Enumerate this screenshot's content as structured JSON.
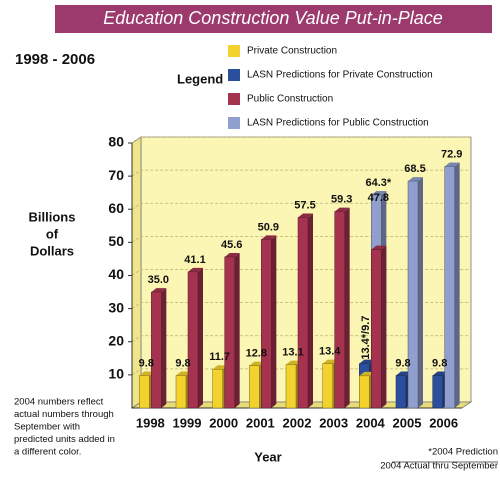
{
  "chart_data": {
    "type": "bar",
    "title": "Education Construction Value Put-in-Place",
    "subtitle": "1998 - 2006",
    "legend_title": "Legend",
    "y_label": [
      "Billions",
      "of",
      "Dollars"
    ],
    "x_label": "Year",
    "note": [
      "2004 numbers reflect",
      "actual numbers through",
      "September with",
      "predicted units added in",
      "a different color."
    ],
    "footnote": [
      "*2004 Prediction",
      "2004 Actual thru September"
    ],
    "categories": [
      "1998",
      "1999",
      "2000",
      "2001",
      "2002",
      "2003",
      "2004",
      "2005",
      "2006"
    ],
    "ylim": [
      0,
      80
    ],
    "yticks": [
      10,
      20,
      30,
      40,
      50,
      60,
      70,
      80
    ],
    "grid": true,
    "series": [
      {
        "name": "Private Construction",
        "color": "#f3d22e",
        "group": 0,
        "values": [
          9.8,
          9.8,
          11.7,
          12.8,
          13.1,
          13.4,
          9.7,
          null,
          null
        ],
        "value_labels": [
          "9.8",
          "9.8",
          "11.7",
          "12.8",
          "13.1",
          "13.4",
          null,
          null,
          null
        ]
      },
      {
        "name": "LASN Predictions for Private Construction",
        "color": "#2b4f9c",
        "group": 0,
        "values": [
          null,
          null,
          null,
          null,
          null,
          null,
          13.4,
          9.8,
          9.8
        ],
        "value_labels": [
          null,
          null,
          null,
          null,
          null,
          null,
          "13.4*/9.7",
          "9.8",
          "9.8"
        ]
      },
      {
        "name": "Public Construction",
        "color": "#a5324f",
        "group": 1,
        "values": [
          35.0,
          41.1,
          45.6,
          50.9,
          57.5,
          59.3,
          47.8,
          null,
          null
        ],
        "value_labels": [
          "35.0",
          "41.1",
          "45.6",
          "50.9",
          "57.5",
          "59.3",
          "47.8",
          null,
          null
        ]
      },
      {
        "name": "LASN Predictions for Public Construction",
        "color": "#909fcd",
        "group": 1,
        "values": [
          null,
          null,
          null,
          null,
          null,
          null,
          64.3,
          68.5,
          72.9
        ],
        "value_labels": [
          null,
          null,
          null,
          null,
          null,
          null,
          "64.3*",
          "68.5",
          "72.9"
        ]
      }
    ]
  }
}
